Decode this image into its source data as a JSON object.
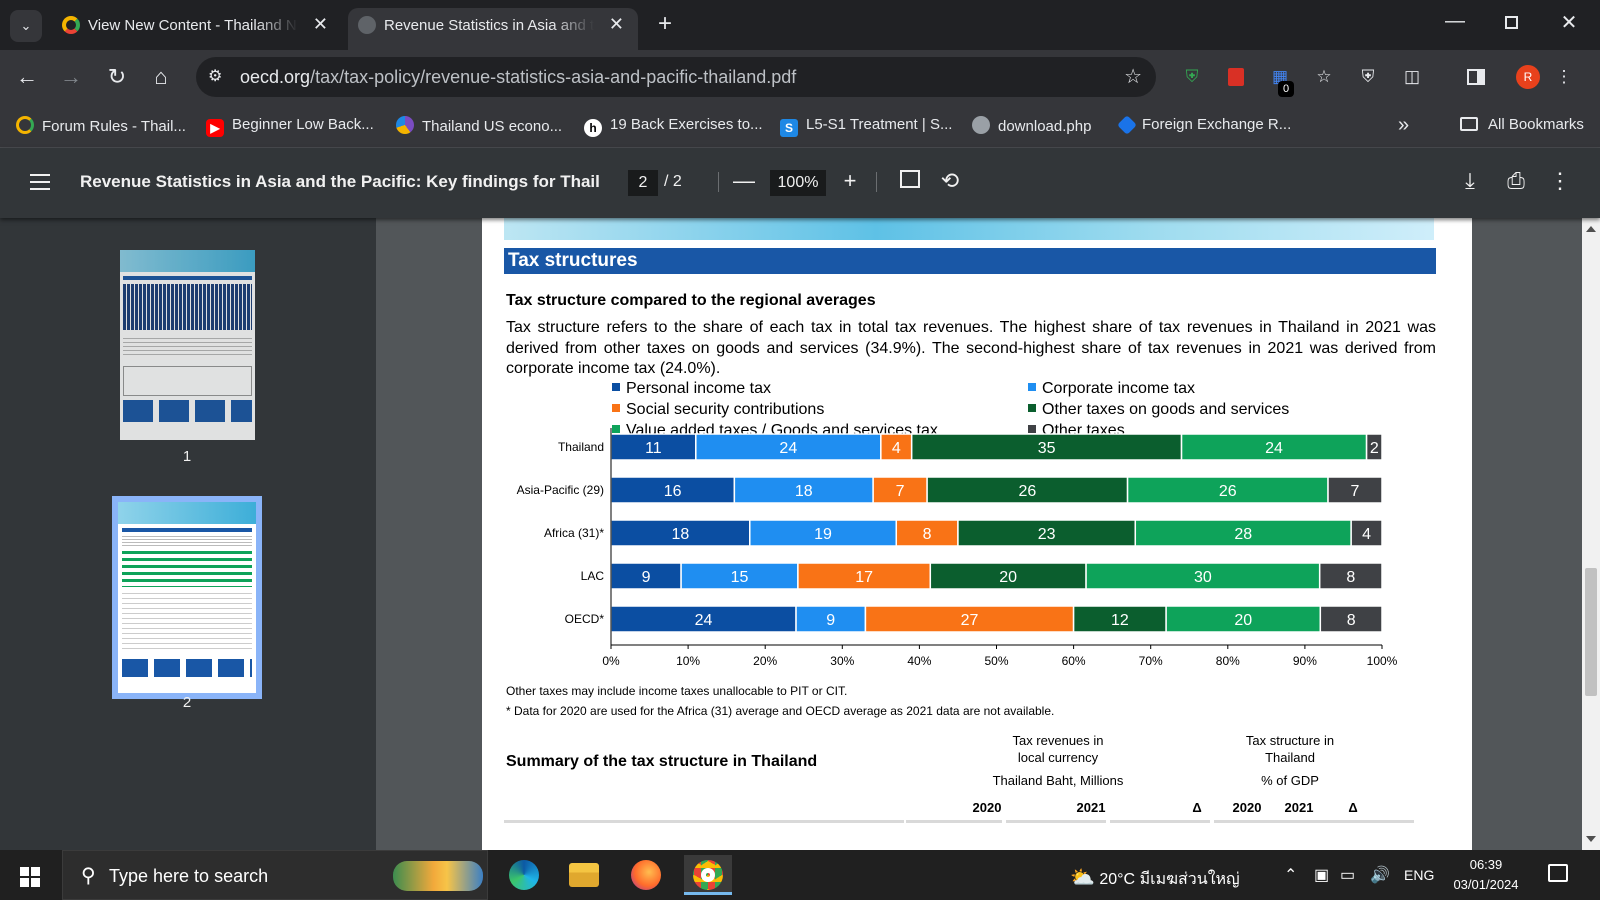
{
  "tabs": [
    {
      "title": "View New Content - Thailand N",
      "favicon": "opera-ring-icon",
      "active": false
    },
    {
      "title": "Revenue Statistics in Asia and th",
      "favicon": "globe-icon",
      "active": true
    }
  ],
  "toolbar": {
    "url_host": "oecd.org",
    "url_path": "/tax/tax-policy/revenue-statistics-asia-and-pacific-thailand.pdf",
    "extension_badge": "0",
    "profile_initial": "R"
  },
  "bookmarks": [
    {
      "label": "Forum Rules - Thail...",
      "icon": "forum-icon",
      "color": "#f4b400"
    },
    {
      "label": "Beginner Low Back...",
      "icon": "youtube-icon",
      "color": "#ff0000"
    },
    {
      "label": "Thailand US econo...",
      "icon": "pie-icon",
      "color": "#7a4cc2"
    },
    {
      "label": "19 Back Exercises to...",
      "icon": "h-icon",
      "color": "#ffffff"
    },
    {
      "label": "L5-S1 Treatment | S...",
      "icon": "s-icon",
      "color": "#1e88e5"
    },
    {
      "label": "download.php",
      "icon": "globe-icon",
      "color": "#9aa0a6"
    },
    {
      "label": "Foreign Exchange R...",
      "icon": "diamond-icon",
      "color": "#1a73e8"
    }
  ],
  "bookmarks_all": "All Bookmarks",
  "pdf": {
    "title": "Revenue Statistics in Asia and the Pacific: Key findings for Thaila...",
    "current_page": "2",
    "total_pages": "/ 2",
    "zoom": "100%"
  },
  "thumbnails": [
    {
      "number": "1"
    },
    {
      "number": "2"
    }
  ],
  "document": {
    "section_title": "Tax structures",
    "subtitle": "Tax structure compared to the regional averages",
    "paragraph": "Tax structure refers to the share of each tax in total tax revenues. The highest share of tax revenues in Thailand in 2021 was derived from other taxes on goods and services (34.9%). The second-highest share of tax revenues in 2021 was derived from corporate income tax (24.0%).",
    "note1": "Other taxes may include income taxes unallocable to PIT or CIT.",
    "note2": "* Data for 2020 are used for the Africa (31) average and OECD average as 2021 data are not available.",
    "summary_title": "Summary of the tax structure in Thailand",
    "col_group1": {
      "line1": "Tax revenues in",
      "line2": "local currency",
      "line3": "Thailand Baht, Millions"
    },
    "col_group2": {
      "line1": "Tax structure in",
      "line2": "Thailand",
      "line3": "% of GDP"
    },
    "year_headers": [
      "2020",
      "2021",
      "Δ",
      "2020",
      "2021",
      "Δ"
    ]
  },
  "chart_data": {
    "type": "bar",
    "orientation": "horizontal",
    "stacked": true,
    "categories": [
      "Thailand",
      "Asia-Pacific (29)",
      "Africa (31)*",
      "LAC",
      "OECD*"
    ],
    "series": [
      {
        "name": "Personal income tax",
        "color": "#0b4ea2",
        "values": [
          11,
          16,
          18,
          9,
          24
        ]
      },
      {
        "name": "Corporate income tax",
        "color": "#1f8ef1",
        "values": [
          24,
          18,
          19,
          15,
          9
        ]
      },
      {
        "name": "Social security contributions",
        "color": "#f97316",
        "values": [
          4,
          7,
          8,
          17,
          27
        ]
      },
      {
        "name": "Other taxes on goods and services",
        "color": "#0b5e2e",
        "values": [
          35,
          26,
          23,
          20,
          12
        ]
      },
      {
        "name": "Value added taxes / Goods and services tax",
        "color": "#0ea35a",
        "values": [
          24,
          26,
          28,
          30,
          20
        ]
      },
      {
        "name": "Other taxes",
        "color": "#3f4145",
        "values": [
          2,
          7,
          4,
          8,
          8
        ]
      }
    ],
    "xlim": [
      0,
      100
    ],
    "xticks": [
      "0%",
      "10%",
      "20%",
      "30%",
      "40%",
      "50%",
      "60%",
      "70%",
      "80%",
      "90%",
      "100%"
    ],
    "legend_position": "top",
    "grid": false
  },
  "taskbar": {
    "search_placeholder": "Type here to search",
    "weather": "20°C",
    "weather_location": "มีเมฆส่วนใหญ่",
    "language": "ENG",
    "time": "06:39",
    "date": "03/01/2024"
  }
}
